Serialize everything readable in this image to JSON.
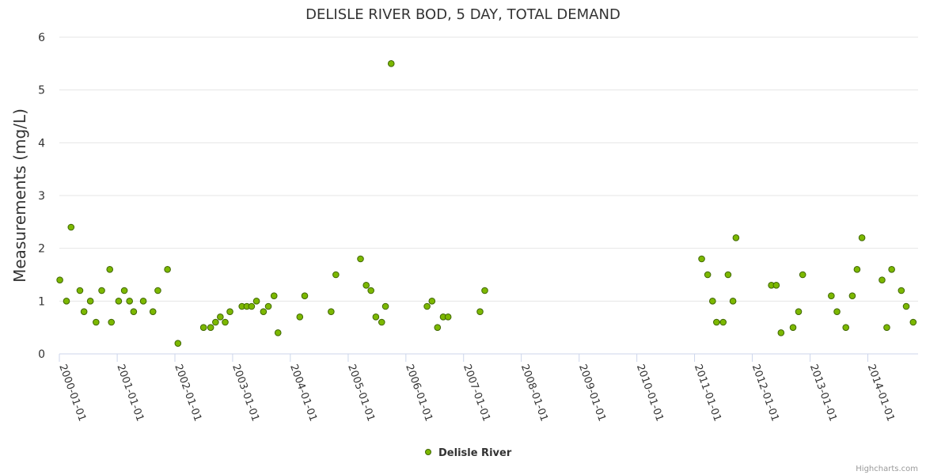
{
  "chart_data": {
    "type": "scatter",
    "title": "DELISLE RIVER BOD, 5 DAY, TOTAL DEMAND",
    "ylabel": "Measurements (mg/L)",
    "xlabel": "",
    "ylim": [
      0,
      6
    ],
    "yticks": [
      "0",
      "1",
      "2",
      "3",
      "4",
      "5",
      "6"
    ],
    "xlim": [
      "2000-01-01",
      "2014-11-15"
    ],
    "xticks": [
      "2000-01-01",
      "2001-01-01",
      "2002-01-01",
      "2003-01-01",
      "2004-01-01",
      "2005-01-01",
      "2006-01-01",
      "2007-01-01",
      "2008-01-01",
      "2009-01-01",
      "2010-01-01",
      "2011-01-01",
      "2012-01-01",
      "2013-01-01",
      "2014-01-01"
    ],
    "grid": true,
    "legend_position": "bottom-center",
    "credit": "Highcharts.com",
    "colors": {
      "marker_fill": "#7cb800",
      "marker_stroke": "#3f6600",
      "grid": "#e6e6e6",
      "axis": "#ccd6eb"
    },
    "series": [
      {
        "name": "Delisle River",
        "points": [
          [
            "2000-01-04",
            1.4
          ],
          [
            "2000-02-15",
            1.0
          ],
          [
            "2000-03-15",
            2.4
          ],
          [
            "2000-05-10",
            1.2
          ],
          [
            "2000-06-05",
            0.8
          ],
          [
            "2000-07-15",
            1.0
          ],
          [
            "2000-08-20",
            0.6
          ],
          [
            "2000-09-25",
            1.2
          ],
          [
            "2000-11-15",
            1.6
          ],
          [
            "2000-11-25",
            0.6
          ],
          [
            "2001-01-10",
            1.0
          ],
          [
            "2001-02-15",
            1.2
          ],
          [
            "2001-03-20",
            1.0
          ],
          [
            "2001-04-15",
            0.8
          ],
          [
            "2001-06-15",
            1.0
          ],
          [
            "2001-08-15",
            0.8
          ],
          [
            "2001-09-15",
            1.2
          ],
          [
            "2001-11-15",
            1.6
          ],
          [
            "2002-01-20",
            0.2
          ],
          [
            "2002-07-01",
            0.5
          ],
          [
            "2002-08-15",
            0.5
          ],
          [
            "2002-09-15",
            0.6
          ],
          [
            "2002-10-15",
            0.7
          ],
          [
            "2002-11-15",
            0.6
          ],
          [
            "2002-12-15",
            0.8
          ],
          [
            "2003-03-01",
            0.9
          ],
          [
            "2003-04-01",
            0.9
          ],
          [
            "2003-05-01",
            0.9
          ],
          [
            "2003-06-01",
            1.0
          ],
          [
            "2003-07-15",
            0.8
          ],
          [
            "2003-08-15",
            0.9
          ],
          [
            "2003-09-20",
            1.1
          ],
          [
            "2003-10-15",
            0.4
          ],
          [
            "2004-03-01",
            0.7
          ],
          [
            "2004-04-01",
            1.1
          ],
          [
            "2004-09-15",
            0.8
          ],
          [
            "2004-10-15",
            1.5
          ],
          [
            "2005-03-20",
            1.8
          ],
          [
            "2005-04-25",
            1.3
          ],
          [
            "2005-05-25",
            1.2
          ],
          [
            "2005-06-25",
            0.7
          ],
          [
            "2005-08-01",
            0.6
          ],
          [
            "2005-08-25",
            0.9
          ],
          [
            "2005-09-30",
            5.5
          ],
          [
            "2006-05-15",
            0.9
          ],
          [
            "2006-06-15",
            1.0
          ],
          [
            "2006-07-20",
            0.5
          ],
          [
            "2006-08-25",
            0.7
          ],
          [
            "2006-09-25",
            0.7
          ],
          [
            "2007-04-15",
            0.8
          ],
          [
            "2007-05-15",
            1.2
          ],
          [
            "2011-02-15",
            1.8
          ],
          [
            "2011-03-25",
            1.5
          ],
          [
            "2011-04-25",
            1.0
          ],
          [
            "2011-05-20",
            0.6
          ],
          [
            "2011-07-01",
            0.6
          ],
          [
            "2011-08-01",
            1.5
          ],
          [
            "2011-09-01",
            1.0
          ],
          [
            "2011-09-20",
            2.2
          ],
          [
            "2012-05-01",
            1.3
          ],
          [
            "2012-06-01",
            1.3
          ],
          [
            "2012-07-01",
            0.4
          ],
          [
            "2012-09-15",
            0.5
          ],
          [
            "2012-10-20",
            0.8
          ],
          [
            "2012-11-15",
            1.5
          ],
          [
            "2013-05-15",
            1.1
          ],
          [
            "2013-06-20",
            0.8
          ],
          [
            "2013-08-15",
            0.5
          ],
          [
            "2013-09-25",
            1.1
          ],
          [
            "2013-10-25",
            1.6
          ],
          [
            "2013-11-25",
            2.2
          ],
          [
            "2014-04-01",
            1.4
          ],
          [
            "2014-05-01",
            0.5
          ],
          [
            "2014-06-01",
            1.6
          ],
          [
            "2014-08-01",
            1.2
          ],
          [
            "2014-09-01",
            0.9
          ],
          [
            "2014-10-15",
            0.6
          ]
        ]
      }
    ]
  }
}
